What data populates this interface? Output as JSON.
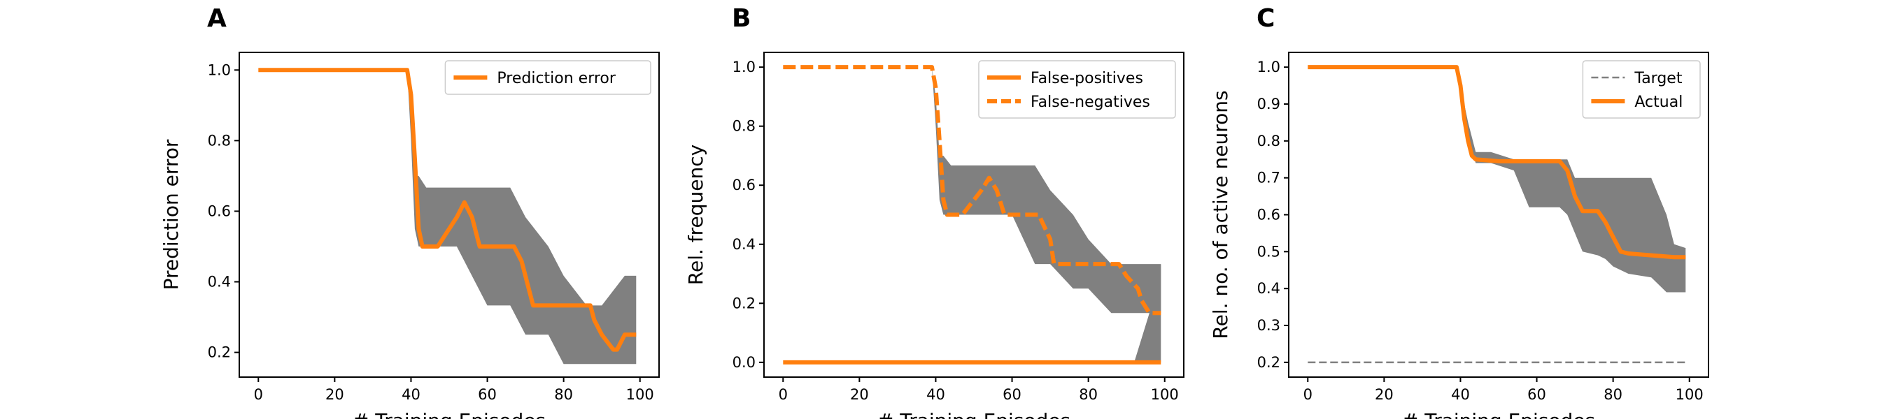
{
  "colors": {
    "line": "#ff7f0e",
    "band": "#808080",
    "target": "#808080",
    "axes": "#000000"
  },
  "chart_data": [
    {
      "panel": "A",
      "type": "line",
      "xlabel": "# Training Episodes",
      "ylabel": "Prediction error",
      "xlim": [
        -5,
        105
      ],
      "ylim": [
        0.13,
        1.05
      ],
      "xticks": [
        0,
        20,
        40,
        60,
        80,
        100
      ],
      "yticks": [
        0.2,
        0.4,
        0.6,
        0.8,
        1.0
      ],
      "ytick_labels": [
        "0.2",
        "0.4",
        "0.6",
        "0.8",
        "1.0"
      ],
      "legend": "top-right",
      "band": {
        "x": [
          0,
          39,
          40,
          41,
          42,
          44,
          50,
          52,
          60,
          66,
          70,
          76,
          80,
          86,
          90,
          96,
          99
        ],
        "upper": [
          1.0,
          1.0,
          0.9,
          0.7,
          0.7,
          0.667,
          0.667,
          0.667,
          0.667,
          0.667,
          0.583,
          0.5,
          0.417,
          0.333,
          0.333,
          0.417,
          0.417
        ],
        "lower": [
          1.0,
          1.0,
          0.8,
          0.55,
          0.5,
          0.5,
          0.5,
          0.5,
          0.333,
          0.333,
          0.25,
          0.25,
          0.167,
          0.167,
          0.167,
          0.167,
          0.167
        ]
      },
      "series": [
        {
          "name": "Prediction error",
          "style": "solid",
          "x": [
            0,
            39,
            40,
            41,
            42,
            43,
            47,
            52,
            54,
            56,
            58,
            62,
            67,
            69,
            71,
            72,
            77,
            82,
            87,
            88,
            90,
            93,
            94,
            96,
            99
          ],
          "y": [
            1.0,
            1.0,
            0.93,
            0.75,
            0.55,
            0.5,
            0.5,
            0.583,
            0.625,
            0.583,
            0.5,
            0.5,
            0.5,
            0.458,
            0.375,
            0.333,
            0.333,
            0.333,
            0.333,
            0.292,
            0.25,
            0.208,
            0.208,
            0.25,
            0.25
          ]
        }
      ]
    },
    {
      "panel": "B",
      "type": "line",
      "xlabel": "# Training Episodes",
      "ylabel": "Rel. frequency",
      "xlim": [
        -5,
        105
      ],
      "ylim": [
        -0.05,
        1.05
      ],
      "xticks": [
        0,
        20,
        40,
        60,
        80,
        100
      ],
      "yticks": [
        0.0,
        0.2,
        0.4,
        0.6,
        0.8,
        1.0
      ],
      "ytick_labels": [
        "0.0",
        "0.2",
        "0.4",
        "0.6",
        "0.8",
        "1.0"
      ],
      "legend": "top-right",
      "band": {
        "x": [
          0,
          39,
          40,
          41,
          42,
          44,
          50,
          52,
          60,
          66,
          70,
          76,
          80,
          86,
          90,
          92,
          96,
          99
        ],
        "upper": [
          1.0,
          1.0,
          0.9,
          0.7,
          0.7,
          0.667,
          0.667,
          0.667,
          0.667,
          0.667,
          0.583,
          0.5,
          0.417,
          0.333,
          0.333,
          0.333,
          0.333,
          0.333
        ],
        "lower": [
          1.0,
          1.0,
          0.8,
          0.55,
          0.5,
          0.5,
          0.5,
          0.5,
          0.5,
          0.333,
          0.333,
          0.25,
          0.25,
          0.167,
          0.167,
          0.167,
          0.167,
          0.167
        ]
      },
      "band2": {
        "x": [
          90,
          92,
          96,
          99
        ],
        "upper": [
          0.0,
          0.0,
          0.167,
          0.333
        ],
        "lower": [
          0.0,
          0.0,
          0.0,
          0.0
        ]
      },
      "series": [
        {
          "name": "False-positives",
          "style": "solid",
          "x": [
            0,
            99
          ],
          "y": [
            0.0,
            0.0
          ]
        },
        {
          "name": "False-negatives",
          "style": "dashed",
          "x": [
            0,
            39,
            40,
            41,
            42,
            43,
            47,
            52,
            54,
            56,
            58,
            66,
            67,
            70,
            71,
            77,
            82,
            87,
            88,
            90,
            93,
            94,
            96,
            99
          ],
          "y": [
            1.0,
            1.0,
            0.93,
            0.75,
            0.55,
            0.5,
            0.5,
            0.583,
            0.625,
            0.583,
            0.5,
            0.5,
            0.5,
            0.417,
            0.333,
            0.333,
            0.333,
            0.333,
            0.333,
            0.292,
            0.25,
            0.208,
            0.167,
            0.167
          ]
        }
      ]
    },
    {
      "panel": "C",
      "type": "line",
      "xlabel": "# Training Episodes",
      "ylabel": "Rel. no. of active neurons",
      "xlim": [
        -5,
        105
      ],
      "ylim": [
        0.16,
        1.04
      ],
      "xticks": [
        0,
        20,
        40,
        60,
        80,
        100
      ],
      "yticks": [
        0.2,
        0.3,
        0.4,
        0.5,
        0.6,
        0.7,
        0.8,
        0.9,
        1.0
      ],
      "ytick_labels": [
        "0.2",
        "0.3",
        "0.4",
        "0.5",
        "0.6",
        "0.7",
        "0.8",
        "0.9",
        "1.0"
      ],
      "legend": "top-right",
      "band": {
        "x": [
          0,
          39,
          40,
          42,
          44,
          48,
          54,
          58,
          66,
          68,
          70,
          72,
          76,
          78,
          80,
          84,
          90,
          94,
          96,
          99
        ],
        "upper": [
          1.0,
          1.0,
          0.95,
          0.85,
          0.77,
          0.77,
          0.75,
          0.75,
          0.75,
          0.75,
          0.7,
          0.7,
          0.7,
          0.7,
          0.7,
          0.7,
          0.7,
          0.6,
          0.52,
          0.51
        ],
        "lower": [
          1.0,
          1.0,
          0.93,
          0.8,
          0.74,
          0.74,
          0.72,
          0.62,
          0.62,
          0.6,
          0.55,
          0.5,
          0.49,
          0.48,
          0.46,
          0.44,
          0.43,
          0.39,
          0.39,
          0.39
        ]
      },
      "series": [
        {
          "name": "Target",
          "style": "dashed-thin",
          "x": [
            0,
            99
          ],
          "y": [
            0.2,
            0.2
          ]
        },
        {
          "name": "Actual",
          "style": "solid",
          "x": [
            0,
            39,
            40,
            41,
            42,
            43,
            44,
            50,
            60,
            66,
            68,
            70,
            72,
            76,
            78,
            80,
            82,
            84,
            90,
            96,
            99
          ],
          "y": [
            1.0,
            1.0,
            0.95,
            0.86,
            0.8,
            0.76,
            0.75,
            0.745,
            0.745,
            0.745,
            0.72,
            0.65,
            0.61,
            0.61,
            0.58,
            0.54,
            0.5,
            0.495,
            0.49,
            0.485,
            0.485
          ]
        }
      ]
    }
  ]
}
